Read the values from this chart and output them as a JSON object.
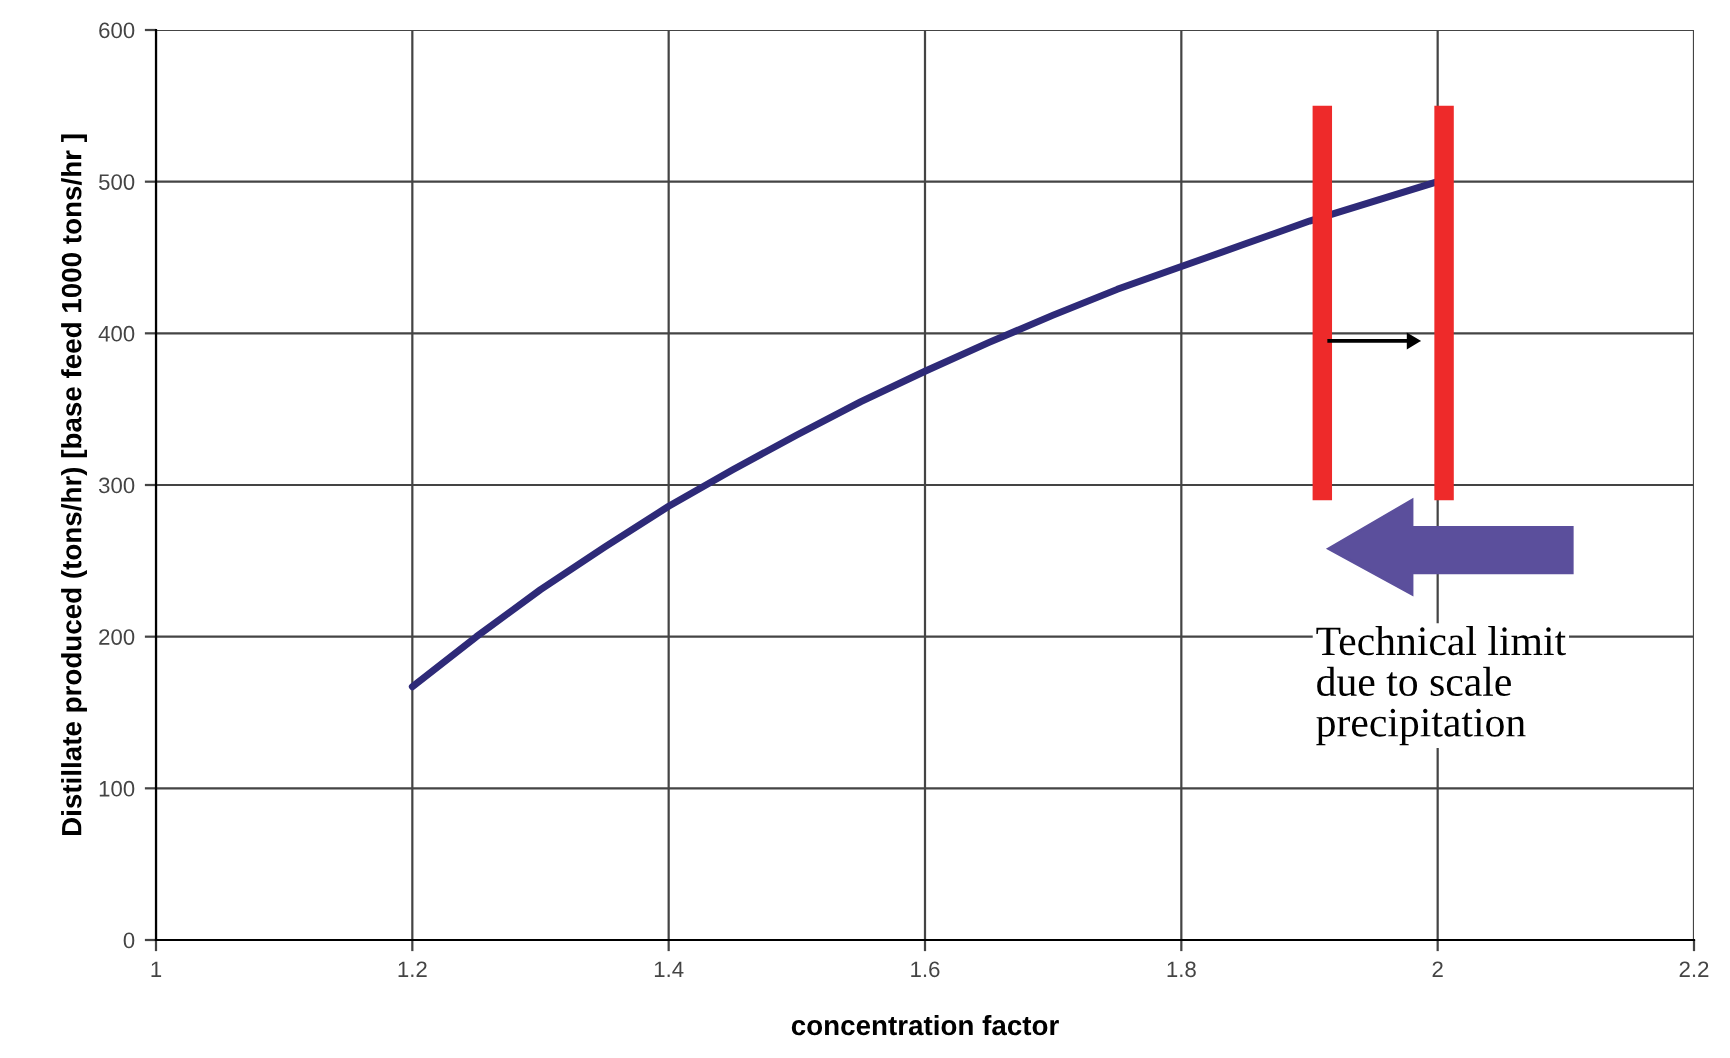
{
  "chart_data": {
    "type": "line",
    "xlabel": "concentration factor",
    "ylabel": "Distillate produced (tons/hr) [base feed 1000 tons/hr ]",
    "xlim": [
      1,
      2.2
    ],
    "xticks": [
      1,
      1.2,
      1.4,
      1.6,
      1.8,
      2,
      2.2
    ],
    "ylim": [
      0,
      600
    ],
    "yticks": [
      0,
      100,
      200,
      300,
      400,
      500,
      600
    ],
    "grid": true,
    "marker": "none",
    "line_style": "solid",
    "series": [
      {
        "color": "#2e2a78",
        "x": [
          1.2,
          1.25,
          1.3,
          1.35,
          1.4,
          1.45,
          1.5,
          1.55,
          1.6,
          1.65,
          1.7,
          1.75,
          1.8,
          1.85,
          1.9,
          1.95,
          2.0
        ],
        "values": [
          167,
          200,
          231,
          259,
          286,
          310,
          333,
          355,
          375,
          394,
          412,
          429,
          444,
          459,
          474,
          487,
          500
        ]
      },
      {
        "color": "#ee2a2a",
        "x": [
          1.91,
          1.91
        ],
        "values": [
          290,
          550
        ]
      },
      {
        "color": "#ee2a2a",
        "x": [
          2.005,
          2.005
        ],
        "values": [
          290,
          550
        ]
      }
    ],
    "annotations": [
      "Technical limit\ndue to scale\nprecipitation"
    ]
  }
}
